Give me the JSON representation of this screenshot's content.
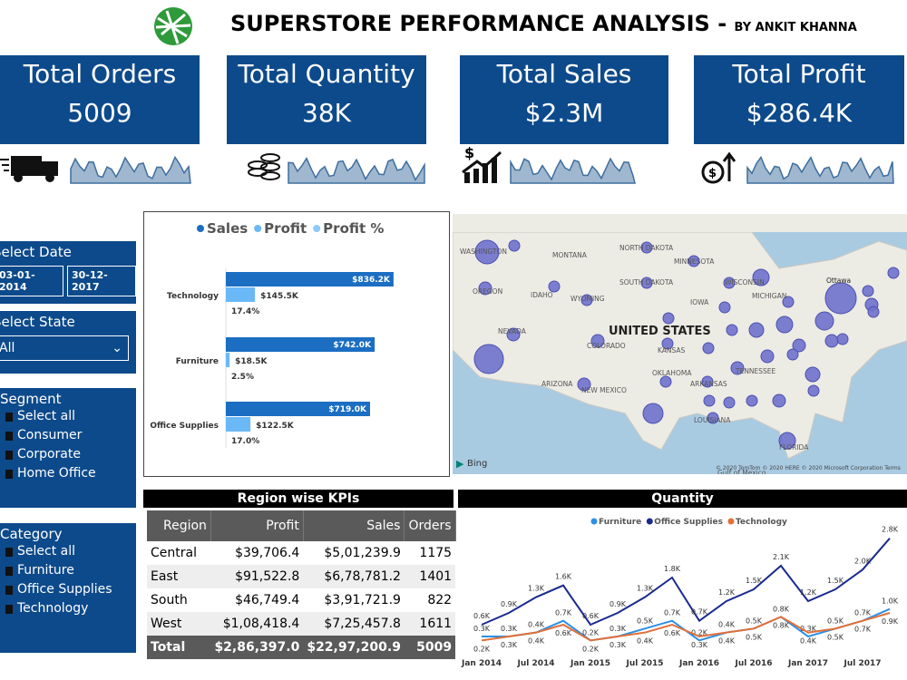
{
  "header": {
    "title": "SUPERSTORE PERFORMANCE ANALYSIS -",
    "author": "BY ANKIT KHANNA"
  },
  "kpis": [
    {
      "label": "Total Orders",
      "value": "5009"
    },
    {
      "label": "Total Quantity",
      "value": "38K"
    },
    {
      "label": "Total Sales",
      "value": "$2.3M"
    },
    {
      "label": "Total Profit",
      "value": "$286.4K"
    }
  ],
  "slicers": {
    "date": {
      "title": "Select Date",
      "from": "03-01-2014",
      "to": "30-12-2017"
    },
    "state": {
      "title": "Select State",
      "selected": "All"
    },
    "segment": {
      "title": "Segment",
      "options": [
        "Select all",
        "Consumer",
        "Corporate",
        "Home Office"
      ]
    },
    "category": {
      "title": "Category",
      "options": [
        "Select all",
        "Furniture",
        "Office Supplies",
        "Technology"
      ]
    }
  },
  "map": {
    "country": "UNITED STATES",
    "labels": [
      "WASHINGTON",
      "MONTANA",
      "NORTH DAKOTA",
      "MINNESOTA",
      "SOUTH DAKOTA",
      "WISCONSIN",
      "OREGON",
      "IDAHO",
      "WYOMING",
      "IOWA",
      "MICHIGAN",
      "NEVADA",
      "COLORADO",
      "KANSAS",
      "OKLAHOMA",
      "ARKANSAS",
      "TENNESSEE",
      "ARIZONA",
      "NEW MEXICO",
      "LOUISIANA",
      "FLORIDA",
      "Ottawa",
      "Gulf of Mexico"
    ],
    "attribution": "Bing",
    "copyright": "© 2020 TomTom © 2020 HERE © 2020 Microsoft Corporation Terms"
  },
  "table": {
    "title": "Region wise KPIs",
    "columns": [
      "Region",
      "Profit",
      "Sales",
      "Orders"
    ],
    "rows": [
      [
        "Central",
        "$39,706.4",
        "$5,01,239.9",
        "1175"
      ],
      [
        "East",
        "$91,522.8",
        "$6,78,781.2",
        "1401"
      ],
      [
        "South",
        "$46,749.4",
        "$3,91,721.9",
        "822"
      ],
      [
        "West",
        "$1,08,418.4",
        "$7,25,457.8",
        "1611"
      ]
    ],
    "total": [
      "Total",
      "$2,86,397.0",
      "$22,97,200.9",
      "5009"
    ]
  },
  "chart_data": [
    {
      "type": "bar",
      "orientation": "horizontal",
      "legend": "top",
      "categories": [
        "Technology",
        "Furniture",
        "Office Supplies"
      ],
      "xlim": [
        0,
        900000
      ],
      "series": [
        {
          "name": "Sales",
          "color": "#1b6ec2",
          "values": [
            836200,
            742000,
            719000
          ],
          "value_labels": [
            "$836.2K",
            "$742.0K",
            "$719.0K"
          ]
        },
        {
          "name": "Profit",
          "color": "#6bb8f7",
          "values": [
            145500,
            18500,
            122500
          ],
          "value_labels": [
            "$145.5K",
            "$18.5K",
            "$122.5K"
          ]
        },
        {
          "name": "Profit %",
          "color": "#8fc9f8",
          "values": [
            17.4,
            2.5,
            17.0
          ],
          "value_labels": [
            "17.4%",
            "2.5%",
            "17.0%"
          ]
        }
      ]
    },
    {
      "type": "line",
      "title": "Quantity",
      "legend": "top",
      "categories": [
        "Jan 2014",
        null,
        "Jul 2014",
        null,
        "Jan 2015",
        null,
        "Jul 2015",
        null,
        "Jan 2016",
        null,
        "Jul 2016",
        null,
        "Jan 2017",
        null,
        "Jul 2017",
        null
      ],
      "ylim": [
        0,
        3
      ],
      "series": [
        {
          "name": "Furniture",
          "color": "#2e8fe6",
          "values": [
            0.3,
            0.3,
            0.4,
            0.7,
            0.2,
            0.3,
            0.5,
            0.7,
            0.2,
            0.4,
            0.5,
            0.8,
            0.3,
            0.5,
            0.7,
            1.0
          ],
          "value_labels": [
            "0.3K",
            "0.3K",
            "0.4K",
            "0.7K",
            "0.2K",
            "0.3K",
            "0.5K",
            "0.7K",
            "0.2K",
            "0.4K",
            "0.5K",
            "0.8K",
            "0.3K",
            "0.5K",
            "0.7K",
            "1.0K"
          ]
        },
        {
          "name": "Office Supplies",
          "color": "#1a2a8f",
          "values": [
            0.6,
            0.9,
            1.3,
            1.6,
            0.6,
            0.9,
            1.3,
            1.8,
            0.7,
            1.2,
            1.5,
            2.1,
            1.2,
            1.5,
            2.0,
            2.8
          ],
          "value_labels": [
            "0.6K",
            "0.9K",
            "1.3K",
            "1.6K",
            "0.6K",
            "0.9K",
            "1.3K",
            "1.8K",
            "0.7K",
            "1.2K",
            "1.5K",
            "2.1K",
            "1.2K",
            "1.5K",
            "2.0K",
            "2.8K"
          ]
        },
        {
          "name": "Technology",
          "color": "#e0703a",
          "values": [
            0.2,
            0.3,
            0.4,
            0.6,
            0.2,
            0.3,
            0.4,
            0.6,
            0.3,
            0.4,
            0.5,
            0.8,
            0.4,
            0.5,
            0.7,
            0.9
          ],
          "value_labels": [
            "0.2K",
            "0.3K",
            "0.4K",
            "0.6K",
            "0.2K",
            "0.3K",
            "0.4K",
            "0.6K",
            "0.3K",
            "0.4K",
            "0.5K",
            "0.8K",
            "0.4K",
            "0.5K",
            "0.7K",
            "0.9K"
          ]
        }
      ]
    }
  ]
}
